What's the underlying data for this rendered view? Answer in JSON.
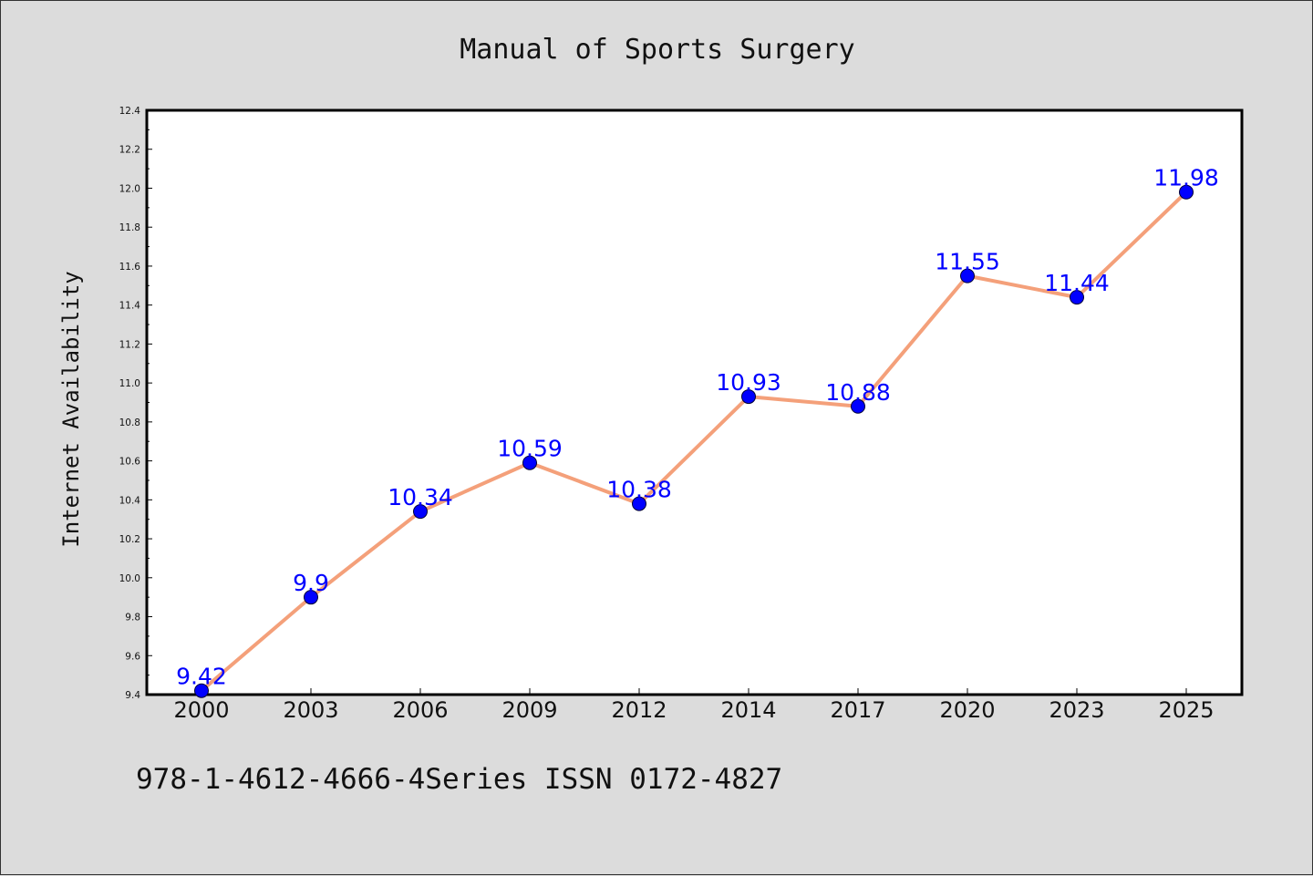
{
  "chart_data": {
    "type": "line",
    "title": "Manual of Sports Surgery",
    "ylabel": "Internet Availability",
    "xlabel": "",
    "categories": [
      "2000",
      "2003",
      "2006",
      "2009",
      "2012",
      "2014",
      "2017",
      "2020",
      "2023",
      "2025"
    ],
    "series": [
      {
        "values": [
          9.42,
          9.9,
          10.34,
          10.59,
          10.38,
          10.93,
          10.88,
          11.55,
          11.44,
          11.98
        ]
      }
    ],
    "data_labels": [
      "9.42",
      "9.9",
      "10.34",
      "10.59",
      "10.38",
      "10.93",
      "10.88",
      "11.55",
      "11.44",
      "11.98"
    ],
    "ylim": [
      9.4,
      12.4
    ],
    "yticks": [
      "9.4",
      "9.6",
      "9.8",
      "10.0",
      "10.2",
      "10.4",
      "10.6",
      "10.8",
      "11.0",
      "11.2",
      "11.4",
      "11.6",
      "11.8",
      "12.0",
      "12.2",
      "12.4"
    ],
    "grid": false,
    "colors": {
      "line": "#f4a07a",
      "marker": "#0000ff",
      "label": "#0000ff",
      "background": "#dcdcdc",
      "plot_bg": "#ffffff"
    }
  },
  "footer": "978-1-4612-4666-4Series ISSN 0172-4827"
}
